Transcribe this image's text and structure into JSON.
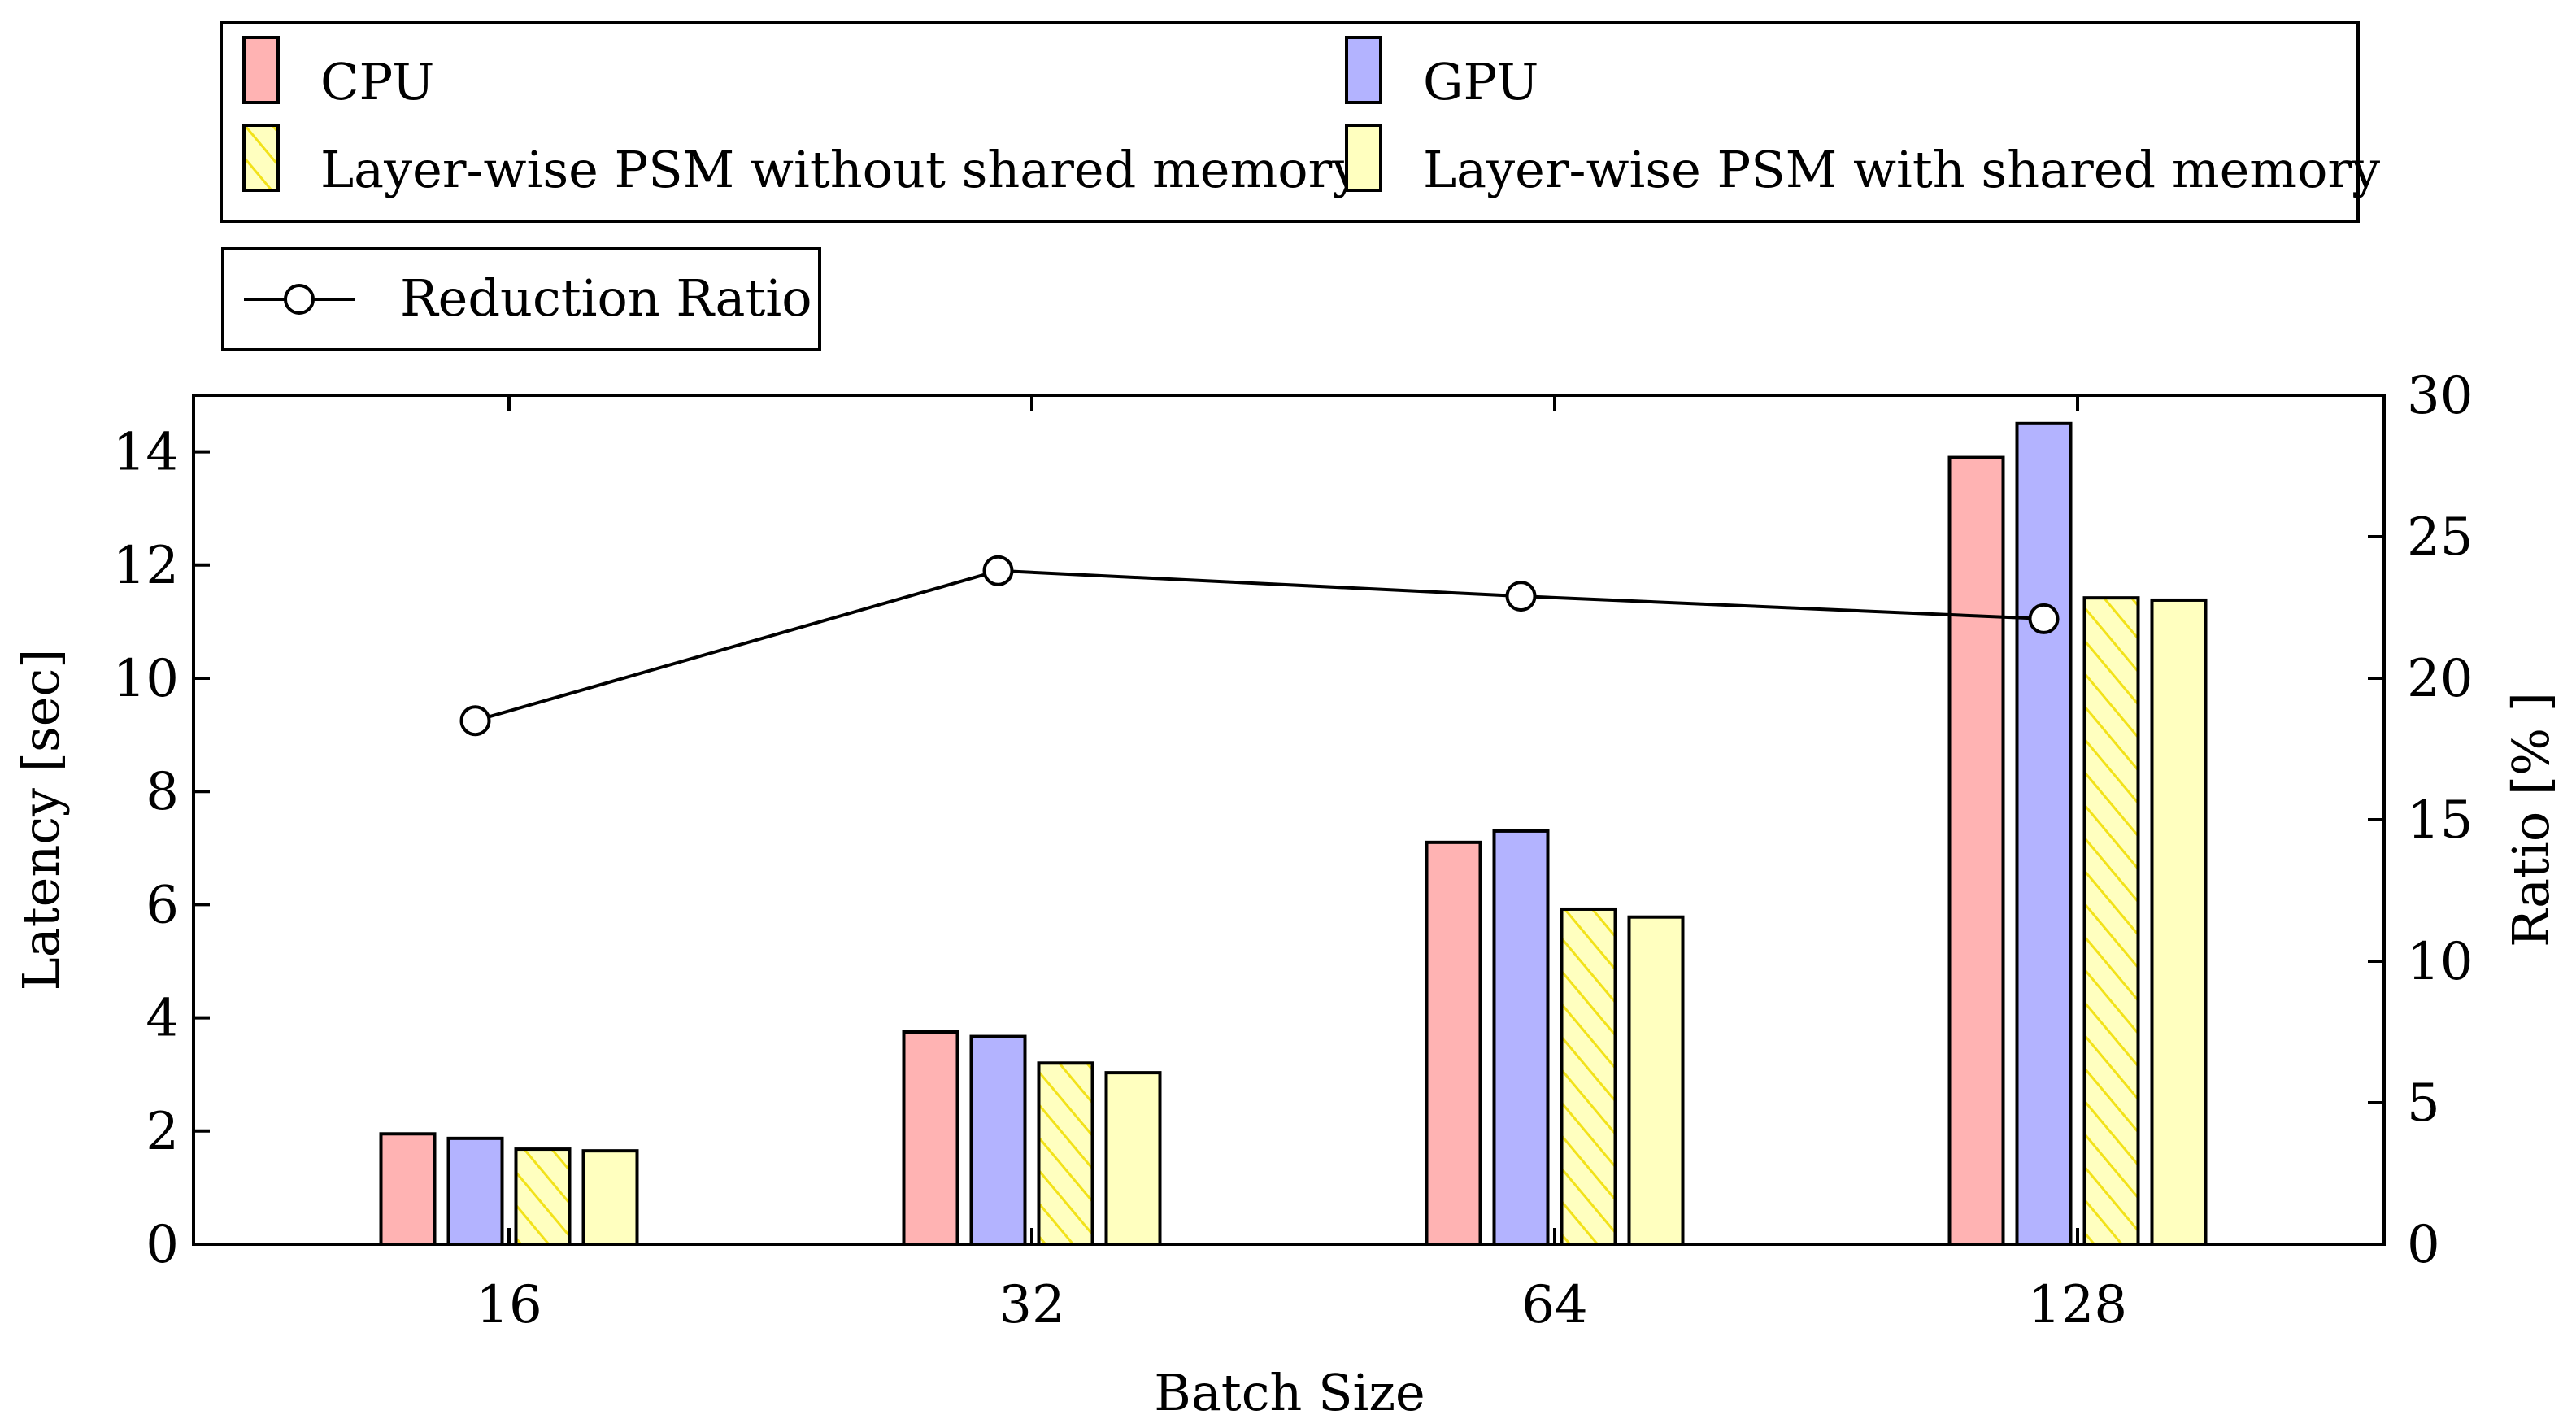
{
  "chart_data": {
    "type": "bar",
    "xlabel": "Batch Size",
    "ylabel": "Latency [sec]",
    "y2label": "Ratio [% ]",
    "categories": [
      "16",
      "32",
      "64",
      "128"
    ],
    "ylim": [
      0,
      15
    ],
    "y2lim": [
      0,
      30
    ],
    "yticks": [
      0,
      2,
      4,
      6,
      8,
      10,
      12,
      14
    ],
    "y2ticks": [
      0,
      5,
      10,
      15,
      20,
      25,
      30
    ],
    "series": [
      {
        "name": "CPU",
        "values": [
          1.95,
          3.75,
          7.1,
          13.9
        ],
        "color": "#ffb3b3",
        "hatch": false
      },
      {
        "name": "GPU",
        "values": [
          1.87,
          3.67,
          7.3,
          14.5
        ],
        "color": "#b3b3ff",
        "hatch": false
      },
      {
        "name": "Layer-wise PSM without shared memory",
        "values": [
          1.68,
          3.2,
          5.92,
          11.42
        ],
        "color": "#ffffbf",
        "hatch": true
      },
      {
        "name": "Layer-wise PSM with shared memory",
        "values": [
          1.65,
          3.03,
          5.78,
          11.38
        ],
        "color": "#ffffbf",
        "hatch": false
      }
    ],
    "line_series": {
      "name": "Reduction Ratio",
      "values": [
        18.5,
        23.8,
        22.9,
        22.1
      ],
      "axis": "right",
      "marker": "circle"
    },
    "legend": {
      "placement": "top"
    },
    "grid": false
  }
}
